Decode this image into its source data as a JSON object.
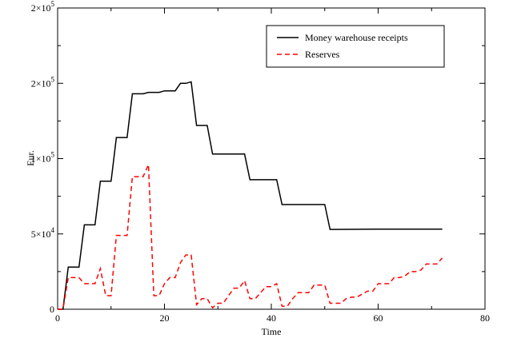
{
  "chart_data": {
    "type": "line",
    "xlabel": "Time",
    "ylabel": "Eur.",
    "xlim": [
      0,
      80
    ],
    "ylim": [
      0,
      200000
    ],
    "xticks": [
      0,
      20,
      40,
      60,
      80
    ],
    "xtick_labels": [
      "0",
      "20",
      "40",
      "60",
      "80"
    ],
    "yticks": [
      0,
      50000,
      100000,
      150000,
      200000
    ],
    "ytick_labels": [
      {
        "mant": "0",
        "exp": ""
      },
      {
        "mant": "5×10",
        "exp": "4"
      },
      {
        "mant": "1×10",
        "exp": "5"
      },
      {
        "mant": "2×10",
        "exp": "5"
      },
      {
        "mant": "2×10",
        "exp": "5"
      }
    ],
    "legend_position": "top-right",
    "grid": false,
    "series": [
      {
        "name": "Money warehouse receipts",
        "color": "#000000",
        "dash": "solid",
        "x": [
          0,
          1,
          2,
          3,
          4,
          5,
          6,
          7,
          8,
          9,
          10,
          11,
          12,
          13,
          14,
          15,
          16,
          17,
          18,
          19,
          20,
          21,
          22,
          23,
          24,
          25,
          26,
          27,
          28,
          29,
          30,
          31,
          32,
          33,
          34,
          35,
          36,
          37,
          38,
          39,
          40,
          41,
          42,
          43,
          44,
          45,
          46,
          47,
          48,
          49,
          50,
          51,
          52,
          60,
          72
        ],
        "y": [
          0,
          0,
          28000,
          28000,
          28000,
          56000,
          56000,
          56000,
          85000,
          85000,
          85000,
          114000,
          114000,
          114000,
          143000,
          143000,
          143000,
          144000,
          144000,
          144000,
          145000,
          145000,
          145000,
          150000,
          150000,
          151000,
          122000,
          122000,
          122000,
          103000,
          103000,
          103000,
          103000,
          103000,
          103000,
          103000,
          86000,
          86000,
          86000,
          86000,
          86000,
          86000,
          69500,
          69500,
          69500,
          69500,
          69500,
          69500,
          69500,
          69500,
          69500,
          53000,
          53000,
          53200,
          53200
        ]
      },
      {
        "name": "Reserves",
        "color": "#ff0000",
        "dash": "dashed",
        "x": [
          0,
          1,
          2,
          3,
          4,
          5,
          6,
          7,
          8,
          9,
          10,
          11,
          12,
          13,
          14,
          15,
          16,
          17,
          18,
          19,
          20,
          21,
          22,
          23,
          24,
          25,
          26,
          27,
          28,
          29,
          30,
          31,
          32,
          33,
          34,
          35,
          36,
          37,
          38,
          39,
          40,
          41,
          42,
          43,
          44,
          45,
          46,
          47,
          48,
          49,
          50,
          51,
          52,
          53,
          54,
          55,
          56,
          57,
          58,
          59,
          60,
          61,
          62,
          63,
          64,
          65,
          66,
          67,
          68,
          69,
          70,
          71,
          72
        ],
        "y": [
          0,
          0,
          21000,
          21000,
          21000,
          17000,
          17000,
          17000,
          27000,
          9000,
          9000,
          49000,
          49000,
          49000,
          88000,
          88000,
          88000,
          96000,
          9000,
          9000,
          17000,
          21000,
          21000,
          31000,
          36000,
          36000,
          3000,
          7000,
          7000,
          1000,
          4000,
          4000,
          9000,
          14000,
          14000,
          19000,
          7000,
          7000,
          11000,
          15000,
          15000,
          17000,
          2000,
          2000,
          7000,
          11000,
          11000,
          11000,
          16000,
          16000,
          16000,
          4000,
          4000,
          4000,
          7000,
          8000,
          8000,
          10000,
          12000,
          12000,
          17000,
          17000,
          17000,
          21000,
          21000,
          22000,
          25000,
          25000,
          26000,
          30000,
          30000,
          30000,
          34000
        ]
      }
    ]
  }
}
